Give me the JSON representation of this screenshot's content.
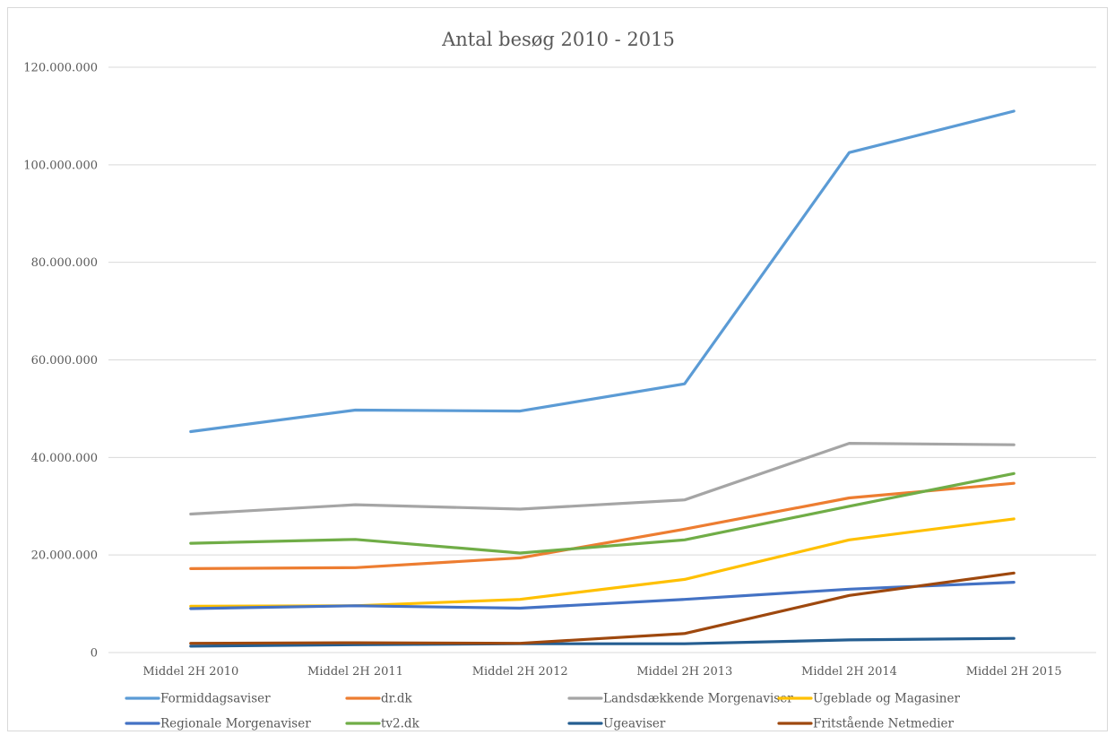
{
  "chart_data": {
    "type": "line",
    "title": "Antal besøg 2010 - 2015",
    "xlabel": "",
    "ylabel": "",
    "categories": [
      "Middel 2H 2010",
      "Middel 2H 2011",
      "Middel 2H 2012",
      "Middel 2H 2013",
      "Middel 2H 2014",
      "Middel 2H 2015"
    ],
    "ylim": [
      0,
      120000000
    ],
    "yticks": [
      0,
      20000000,
      40000000,
      60000000,
      80000000,
      100000000,
      120000000
    ],
    "ytick_labels": [
      "0",
      "20.000.000",
      "40.000.000",
      "60.000.000",
      "80.000.000",
      "100.000.000",
      "120.000.000"
    ],
    "grid": "horizontal",
    "legend_position": "bottom",
    "series": [
      {
        "name": "Formiddagsaviser",
        "color": "#5b9bd5",
        "values": [
          45300000,
          49700000,
          49500000,
          55100000,
          102500000,
          111000000
        ]
      },
      {
        "name": "dr.dk",
        "color": "#ed7d31",
        "values": [
          17200000,
          17400000,
          19400000,
          25300000,
          31700000,
          34700000
        ]
      },
      {
        "name": "Landsdækkende Morgenaviser",
        "color": "#a5a5a5",
        "values": [
          28400000,
          30300000,
          29400000,
          31300000,
          42900000,
          42600000
        ]
      },
      {
        "name": "Ugeblade og Magasiner",
        "color": "#ffc000",
        "values": [
          9500000,
          9600000,
          10900000,
          15000000,
          23100000,
          27400000
        ]
      },
      {
        "name": "Regionale Morgenaviser",
        "color": "#4472c4",
        "values": [
          9000000,
          9600000,
          9100000,
          10900000,
          13000000,
          14400000
        ]
      },
      {
        "name": "tv2.dk",
        "color": "#70ad47",
        "values": [
          22400000,
          23200000,
          20400000,
          23100000,
          30000000,
          36700000
        ]
      },
      {
        "name": "Ugeaviser",
        "color": "#255e91",
        "values": [
          1300000,
          1600000,
          1800000,
          1800000,
          2600000,
          2900000
        ]
      },
      {
        "name": "Fritstående Netmedier",
        "color": "#9e480e",
        "values": [
          1900000,
          2000000,
          1900000,
          3900000,
          11700000,
          16300000
        ]
      }
    ]
  }
}
